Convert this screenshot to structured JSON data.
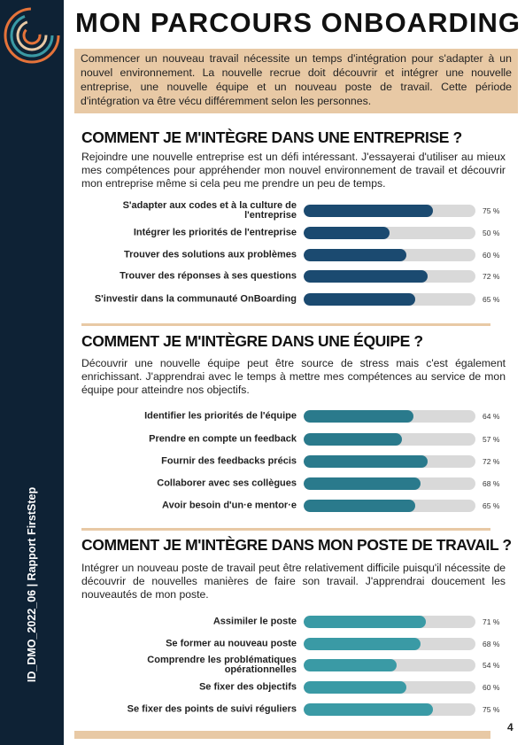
{
  "sidebar": "ID_DMO_2022_06 | Rapport FirstStep",
  "title": "MON PARCOURS ONBOARDING",
  "intro": "Commencer un nouveau travail nécessite un temps d'intégration pour s'adapter à un nouvel environnement. La nouvelle recrue doit découvrir et intégrer une nouvelle entreprise, une nouvelle équipe et un nouveau poste de travail. Cette période d'intégration va être vécu différemment selon les personnes.",
  "sections": [
    {
      "title": "COMMENT JE M'INTÈGRE DANS UNE ENTREPRISE ?",
      "text": "Rejoindre une nouvelle entreprise est un défi intéressant. J'essayerai d'utiliser au mieux mes compétences pour appréhender mon nouvel environnement de travail et découvrir mon entreprise même si cela peu me prendre un peu de temps.",
      "color": "#1b4a70",
      "items": [
        {
          "label": "S'adapter aux codes et à la culture de l'entreprise",
          "value": 75,
          "value_label": "75 %"
        },
        {
          "label": "Intégrer les priorités de l'entreprise",
          "value": 50,
          "value_label": "50 %"
        },
        {
          "label": "Trouver des solutions aux problèmes",
          "value": 60,
          "value_label": "60 %"
        },
        {
          "label": "Trouver des réponses à ses questions",
          "value": 72,
          "value_label": "72 %"
        },
        {
          "label": "S'investir dans la communauté OnBoarding",
          "value": 65,
          "value_label": "65 %"
        }
      ]
    },
    {
      "title": "COMMENT JE M'INTÈGRE DANS UNE ÉQUIPE ?",
      "text": "Découvrir une nouvelle équipe peut être source de stress mais c'est également enrichissant. J'apprendrai avec le temps à mettre mes compétences au service de mon équipe pour atteindre nos objectifs.",
      "color": "#2a7a8c",
      "items": [
        {
          "label": "Identifier les priorités de l'équipe",
          "value": 64,
          "value_label": "64 %"
        },
        {
          "label": "Prendre en compte un feedback",
          "value": 57,
          "value_label": "57 %"
        },
        {
          "label": "Fournir des feedbacks précis",
          "value": 72,
          "value_label": "72 %"
        },
        {
          "label": "Collaborer avec ses collègues",
          "value": 68,
          "value_label": "68 %"
        },
        {
          "label": "Avoir besoin d'un·e mentor·e",
          "value": 65,
          "value_label": "65 %"
        }
      ]
    },
    {
      "title": "COMMENT JE M'INTÈGRE DANS MON POSTE DE TRAVAIL  ?",
      "text": "Intégrer un nouveau poste de travail peut être relativement difficile puisqu'il nécessite de découvrir de nouvelles manières de faire son travail. J'apprendrai doucement les nouveautés de mon poste.",
      "color": "#3a9aa5",
      "items": [
        {
          "label": "Assimiler le poste",
          "value": 71,
          "value_label": "71 %"
        },
        {
          "label": "Se former au nouveau poste",
          "value": 68,
          "value_label": "68 %"
        },
        {
          "label": "Comprendre les problématiques opérationnelles",
          "value": 54,
          "value_label": "54 %"
        },
        {
          "label": "Se fixer des objectifs",
          "value": 60,
          "value_label": "60 %"
        },
        {
          "label": "Se fixer des points de suivi réguliers",
          "value": 75,
          "value_label": "75 %"
        }
      ]
    }
  ],
  "page_number": "4"
}
